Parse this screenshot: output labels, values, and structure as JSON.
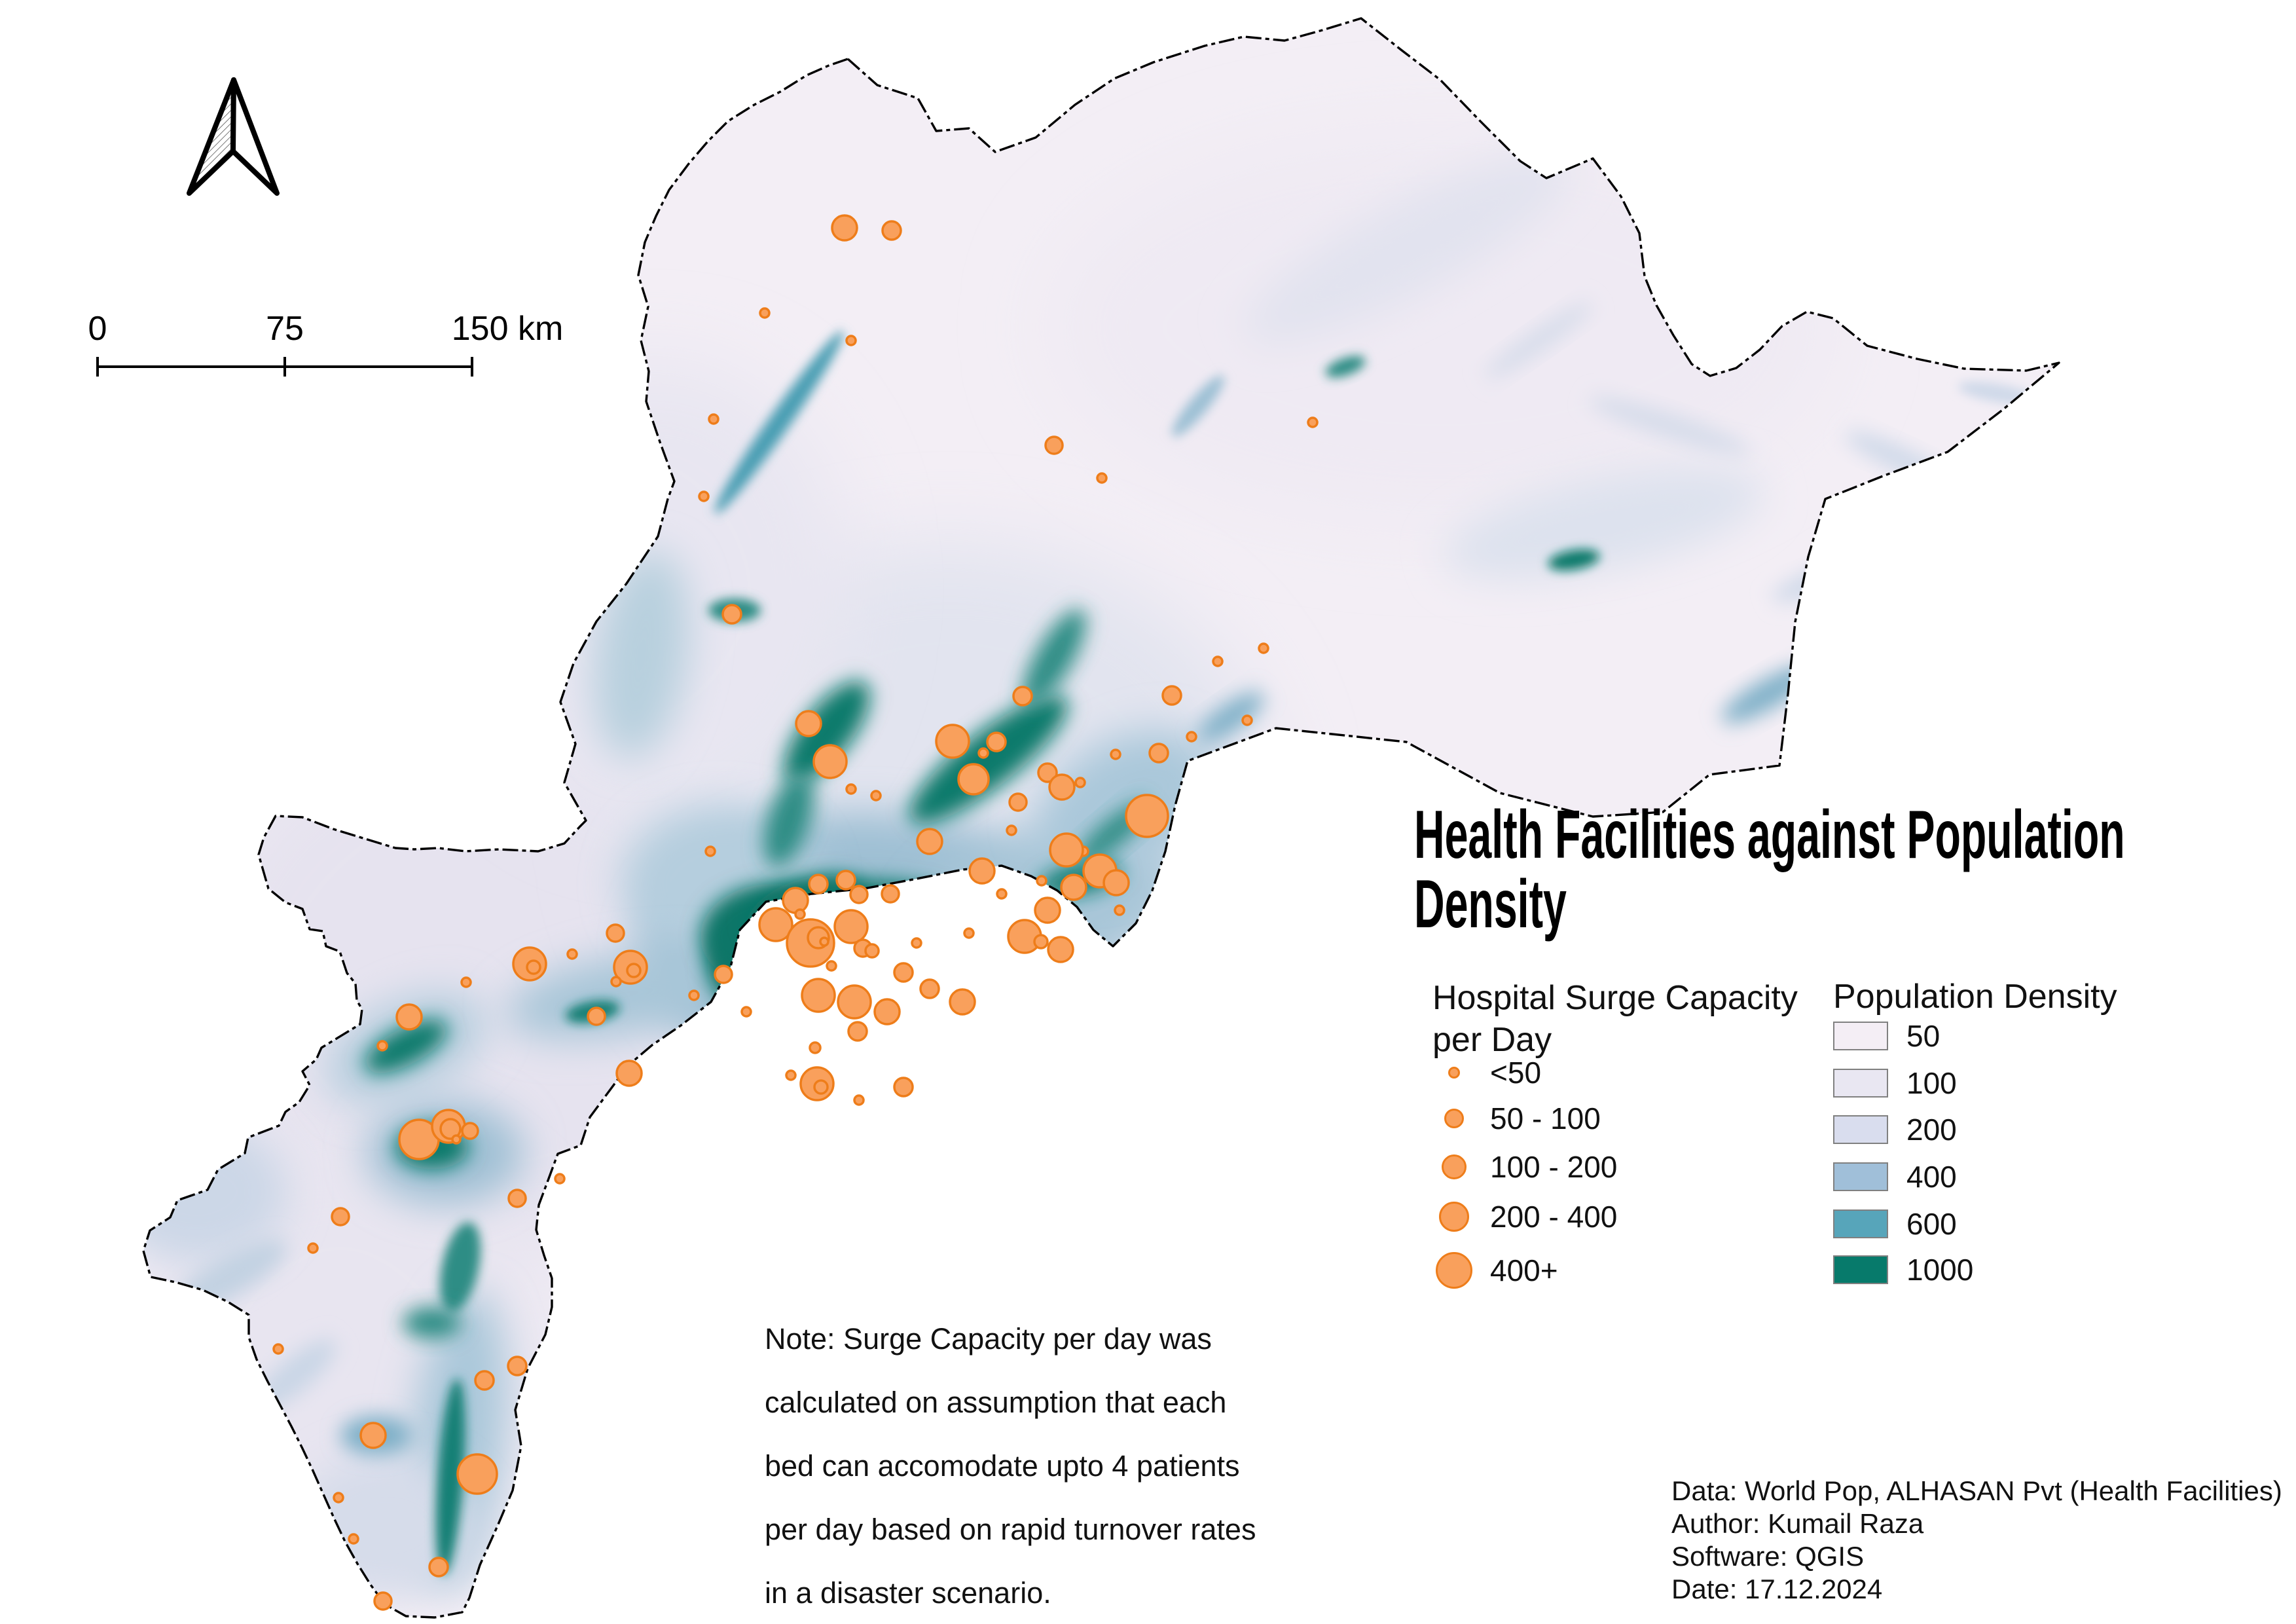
{
  "title": {
    "line1": "Health Facilities against Population",
    "line2": "Density"
  },
  "scale_bar": {
    "labels": [
      "0",
      "75",
      "150 km"
    ]
  },
  "legend_surge": {
    "title_line1": "Hospital Surge Capacity",
    "title_line2": "per Day",
    "items": [
      {
        "label": "<50",
        "r": 9
      },
      {
        "label": "50 - 100",
        "r": 15
      },
      {
        "label": "100 - 200",
        "r": 19
      },
      {
        "label": "200 - 400",
        "r": 23
      },
      {
        "label": "400+",
        "r": 28
      }
    ]
  },
  "legend_density": {
    "title": "Population Density",
    "items": [
      {
        "label": "50",
        "color": "#f4eef5"
      },
      {
        "label": "100",
        "color": "#e9e7f2"
      },
      {
        "label": "200",
        "color": "#d9ddee"
      },
      {
        "label": "400",
        "color": "#a0bfd9"
      },
      {
        "label": "600",
        "color": "#57a5ba"
      },
      {
        "label": "1000",
        "color": "#077a6b"
      }
    ]
  },
  "note": {
    "lines": [
      "Note: Surge Capacity per day was",
      "calculated on assumption that each",
      "bed can accomodate upto 4 patients",
      "per day based on rapid turnover rates",
      "in a disaster scenario."
    ]
  },
  "credits": {
    "lines": [
      "Data: World Pop, ALHASAN Pvt (Health Facilities)",
      "Author: Kumail Raza",
      "Software: QGIS",
      "Date: 17.12.2024"
    ]
  },
  "map": {
    "facility_color_fill": "#f9a05c",
    "facility_color_stroke": "#ee7d1a",
    "base_color": "#f3eef5",
    "facilities": [
      [
        1290,
        348,
        19
      ],
      [
        1362,
        352,
        14
      ],
      [
        1168,
        478,
        7
      ],
      [
        1300,
        520,
        7
      ],
      [
        1090,
        640,
        7
      ],
      [
        1075,
        758,
        7
      ],
      [
        1118,
        938,
        14
      ],
      [
        1610,
        680,
        13
      ],
      [
        2005,
        645,
        7
      ],
      [
        1683,
        730,
        7
      ],
      [
        1235,
        1105,
        19
      ],
      [
        1268,
        1163,
        25
      ],
      [
        1300,
        1205,
        7
      ],
      [
        1338,
        1215,
        7
      ],
      [
        1455,
        1132,
        25
      ],
      [
        1502,
        1150,
        7
      ],
      [
        1522,
        1133,
        14
      ],
      [
        1487,
        1190,
        23
      ],
      [
        1562,
        1063,
        14
      ],
      [
        1650,
        1195,
        7
      ],
      [
        1545,
        1268,
        7
      ],
      [
        1420,
        1285,
        19
      ],
      [
        1555,
        1225,
        13
      ],
      [
        1250,
        1350,
        14
      ],
      [
        1292,
        1344,
        14
      ],
      [
        1312,
        1366,
        13
      ],
      [
        1360,
        1365,
        13
      ],
      [
        1215,
        1375,
        19
      ],
      [
        1185,
        1412,
        25
      ],
      [
        1222,
        1396,
        7
      ],
      [
        1085,
        1300,
        7
      ],
      [
        940,
        1425,
        13
      ],
      [
        1238,
        1440,
        36
      ],
      [
        1250,
        1432,
        16
      ],
      [
        1259,
        1438,
        6
      ],
      [
        1300,
        1415,
        25
      ],
      [
        1318,
        1448,
        13
      ],
      [
        1332,
        1452,
        10
      ],
      [
        1250,
        1520,
        25
      ],
      [
        1305,
        1530,
        25
      ],
      [
        1355,
        1545,
        19
      ],
      [
        1310,
        1575,
        14
      ],
      [
        1245,
        1600,
        8
      ],
      [
        1270,
        1475,
        7
      ],
      [
        1380,
        1485,
        14
      ],
      [
        1420,
        1510,
        14
      ],
      [
        1470,
        1530,
        19
      ],
      [
        1500,
        1330,
        19
      ],
      [
        1530,
        1365,
        7
      ],
      [
        1565,
        1430,
        25
      ],
      [
        1590,
        1438,
        10
      ],
      [
        1600,
        1390,
        19
      ],
      [
        1640,
        1355,
        19
      ],
      [
        1680,
        1330,
        25
      ],
      [
        1655,
        1300,
        7
      ],
      [
        1630,
        1312,
        7
      ],
      [
        1591,
        1345,
        7
      ],
      [
        1620,
        1450,
        19
      ],
      [
        1480,
        1425,
        7
      ],
      [
        1400,
        1440,
        7
      ],
      [
        1105,
        1488,
        13
      ],
      [
        1060,
        1520,
        7
      ],
      [
        1140,
        1545,
        7
      ],
      [
        1600,
        1180,
        14
      ],
      [
        1704,
        1152,
        7
      ],
      [
        1790,
        1062,
        14
      ],
      [
        1860,
        1010,
        7
      ],
      [
        1622,
        1202,
        19
      ],
      [
        1752,
        1246,
        32
      ],
      [
        1629,
        1298,
        25
      ],
      [
        1770,
        1150,
        14
      ],
      [
        1820,
        1125,
        7
      ],
      [
        1905,
        1100,
        7
      ],
      [
        1930,
        990,
        7
      ],
      [
        1705,
        1348,
        19
      ],
      [
        1710,
        1390,
        7
      ],
      [
        1248,
        1655,
        25
      ],
      [
        1254,
        1660,
        10
      ],
      [
        1208,
        1642,
        7
      ],
      [
        1312,
        1680,
        7
      ],
      [
        1380,
        1660,
        14
      ],
      [
        625,
        1553,
        19
      ],
      [
        584,
        1597,
        7
      ],
      [
        712,
        1500,
        7
      ],
      [
        809,
        1472,
        25
      ],
      [
        815,
        1477,
        10
      ],
      [
        874,
        1457,
        7
      ],
      [
        963,
        1477,
        25
      ],
      [
        968,
        1482,
        10
      ],
      [
        941,
        1499,
        7
      ],
      [
        911,
        1552,
        13
      ],
      [
        961,
        1639,
        19
      ],
      [
        640,
        1740,
        30
      ],
      [
        685,
        1720,
        25
      ],
      [
        688,
        1724,
        15
      ],
      [
        697,
        1740,
        6
      ],
      [
        718,
        1727,
        12
      ],
      [
        790,
        1830,
        13
      ],
      [
        855,
        1800,
        7
      ],
      [
        520,
        1858,
        13
      ],
      [
        478,
        1906,
        7
      ],
      [
        790,
        2086,
        14
      ],
      [
        740,
        2108,
        14
      ],
      [
        570,
        2192,
        19
      ],
      [
        729,
        2251,
        30
      ],
      [
        517,
        2287,
        7
      ],
      [
        540,
        2350,
        7
      ],
      [
        670,
        2393,
        14
      ],
      [
        585,
        2445,
        13
      ],
      [
        425,
        2060,
        7
      ]
    ]
  }
}
